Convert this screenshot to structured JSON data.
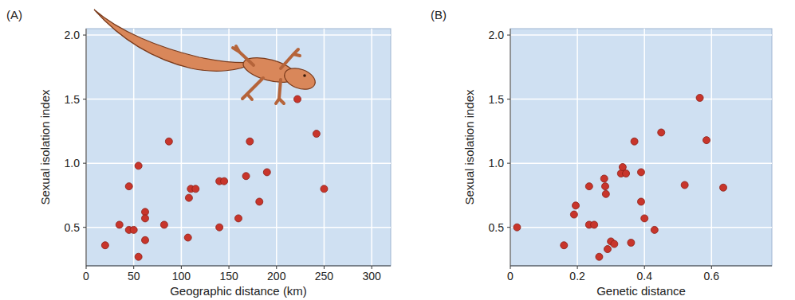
{
  "chart_data": [
    {
      "type": "scatter",
      "panel_label": "(A)",
      "x_label": "Geographic distance (km)",
      "y_label": "Sexual isolation index",
      "xlim": [
        0,
        320
      ],
      "ylim": [
        0.2,
        2.05
      ],
      "xticks": [
        0,
        50,
        100,
        150,
        200,
        250,
        300
      ],
      "yticks": [
        0.5,
        {
          "value": 1,
          "label": "1.0"
        },
        1.5,
        {
          "value": 2,
          "label": "2.0"
        }
      ],
      "grid": true,
      "color": "#c8352b",
      "marker": "circle",
      "x": [
        20,
        35,
        45,
        45,
        50,
        55,
        55,
        62,
        62,
        62,
        82,
        87,
        107,
        108,
        110,
        115,
        140,
        140,
        145,
        160,
        168,
        172,
        182,
        190,
        222,
        242,
        250
      ],
      "values": [
        0.36,
        0.52,
        0.82,
        0.48,
        0.48,
        0.98,
        0.27,
        0.62,
        0.57,
        0.4,
        0.52,
        1.17,
        0.42,
        0.73,
        0.8,
        0.8,
        0.86,
        0.5,
        0.86,
        0.57,
        0.9,
        1.17,
        0.7,
        0.93,
        1.5,
        1.23,
        0.8
      ]
    },
    {
      "type": "scatter",
      "panel_label": "(B)",
      "x_label": "Genetic distance",
      "y_label": "Sexual isolation index",
      "xlim": [
        0,
        0.78
      ],
      "ylim": [
        0.2,
        2.05
      ],
      "xticks": [
        0,
        0.2,
        0.4,
        0.6
      ],
      "yticks": [
        0.5,
        {
          "value": 1,
          "label": "1.0"
        },
        1.5,
        {
          "value": 2,
          "label": "2.0"
        }
      ],
      "grid": true,
      "color": "#c8352b",
      "marker": "circle",
      "x": [
        0.02,
        0.16,
        0.19,
        0.195,
        0.235,
        0.235,
        0.25,
        0.265,
        0.28,
        0.283,
        0.285,
        0.29,
        0.3,
        0.31,
        0.33,
        0.335,
        0.345,
        0.36,
        0.37,
        0.39,
        0.39,
        0.4,
        0.43,
        0.45,
        0.52,
        0.565,
        0.585,
        0.635
      ],
      "values": [
        0.5,
        0.36,
        0.6,
        0.67,
        0.82,
        0.52,
        0.52,
        0.27,
        0.88,
        0.82,
        0.76,
        0.33,
        0.39,
        0.37,
        0.92,
        0.97,
        0.92,
        0.38,
        1.17,
        0.93,
        0.7,
        0.57,
        0.48,
        1.24,
        0.83,
        1.51,
        1.18,
        0.81
      ]
    }
  ]
}
